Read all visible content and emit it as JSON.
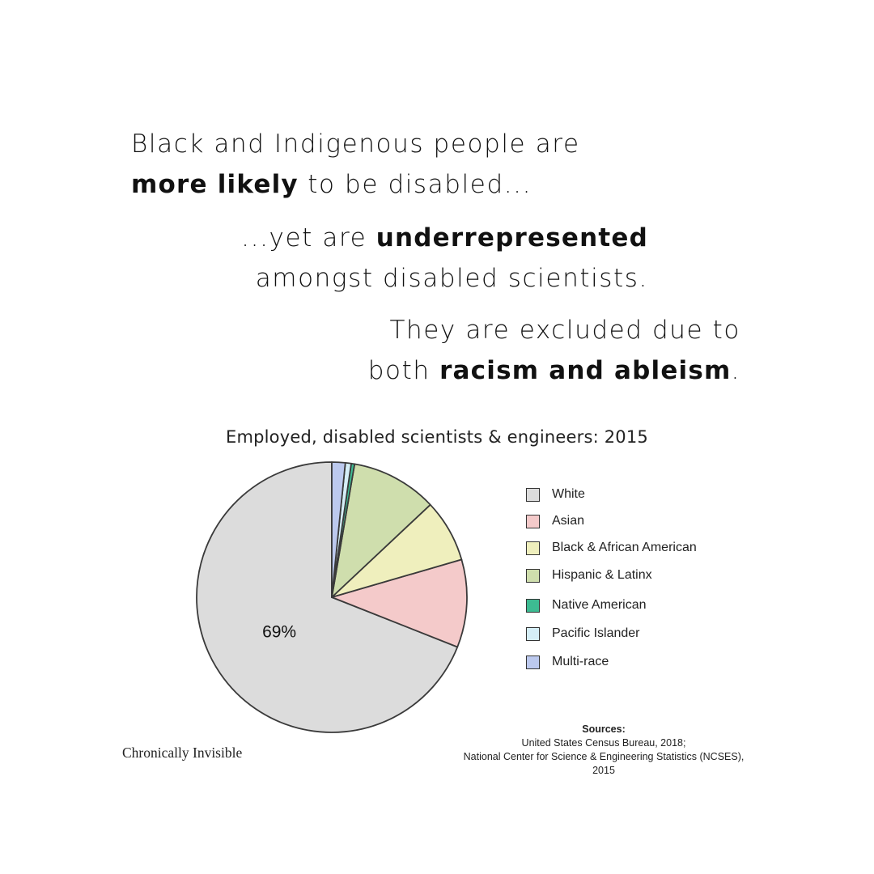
{
  "headline": {
    "p1_a": "Black and Indigenous people are",
    "p1_b_bold": "more likely",
    "p1_b_rest": " to be disabled...",
    "p2_a_pre": "...yet are ",
    "p2_a_bold": "underrepresented",
    "p2_b": "amongst disabled scientists.",
    "p3_a": "They are excluded due to",
    "p3_b_pre": "both ",
    "p3_b_bold": "racism and ableism",
    "p3_b_post": "."
  },
  "chart_data": {
    "type": "pie",
    "title": "Employed, disabled scientists & engineers: 2015",
    "slices": [
      {
        "label": "White",
        "value": 69,
        "color": "#dcdcdc"
      },
      {
        "label": "Asian",
        "value": 10.5,
        "color": "#f4caca"
      },
      {
        "label": "Black & African American",
        "value": 7.5,
        "color": "#efefbd"
      },
      {
        "label": "Hispanic & Latinx",
        "value": 10.3,
        "color": "#cfdead"
      },
      {
        "label": "Native American",
        "value": 0.4,
        "color": "#3dbb92"
      },
      {
        "label": "Pacific Islander",
        "value": 0.7,
        "color": "#d5eef7"
      },
      {
        "label": "Multi-race",
        "value": 1.6,
        "color": "#bcc9ee"
      }
    ],
    "data_labels": [
      {
        "slice": "White",
        "text": "69%"
      }
    ],
    "legend_position": "right",
    "start": "top",
    "direction": "counterclockwise"
  },
  "sources": {
    "title": "Sources:",
    "line1": "United States Census Bureau, 2018;",
    "line2": "National Center for Science & Engineering Statistics (NCSES), 2015"
  },
  "brand": "Chronically Invisible"
}
